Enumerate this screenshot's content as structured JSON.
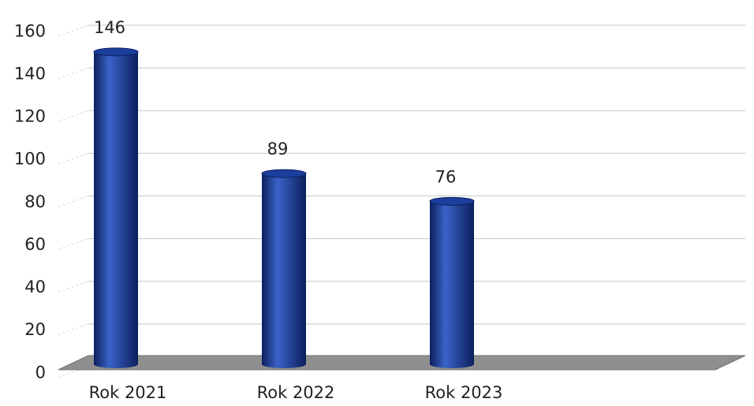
{
  "chart_data": {
    "type": "bar",
    "style": "3d-cylinder",
    "categories": [
      "Rok 2021",
      "Rok 2022",
      "Rok 2023"
    ],
    "values": [
      146,
      89,
      76
    ],
    "data_labels": [
      "146",
      "89",
      "76"
    ],
    "y_ticks": [
      "0",
      "20",
      "40",
      "60",
      "80",
      "100",
      "120",
      "140",
      "160"
    ],
    "ylim": [
      0,
      160
    ],
    "grid": true,
    "legend": "none",
    "title": "",
    "xlabel": "",
    "ylabel": "",
    "colors": {
      "bar": "#1c3f9e",
      "bar_dark": "#0b1f5c",
      "bar_light": "#3a63c8",
      "floor": "#8f8f8f",
      "grid": "#c8c8c8"
    }
  }
}
